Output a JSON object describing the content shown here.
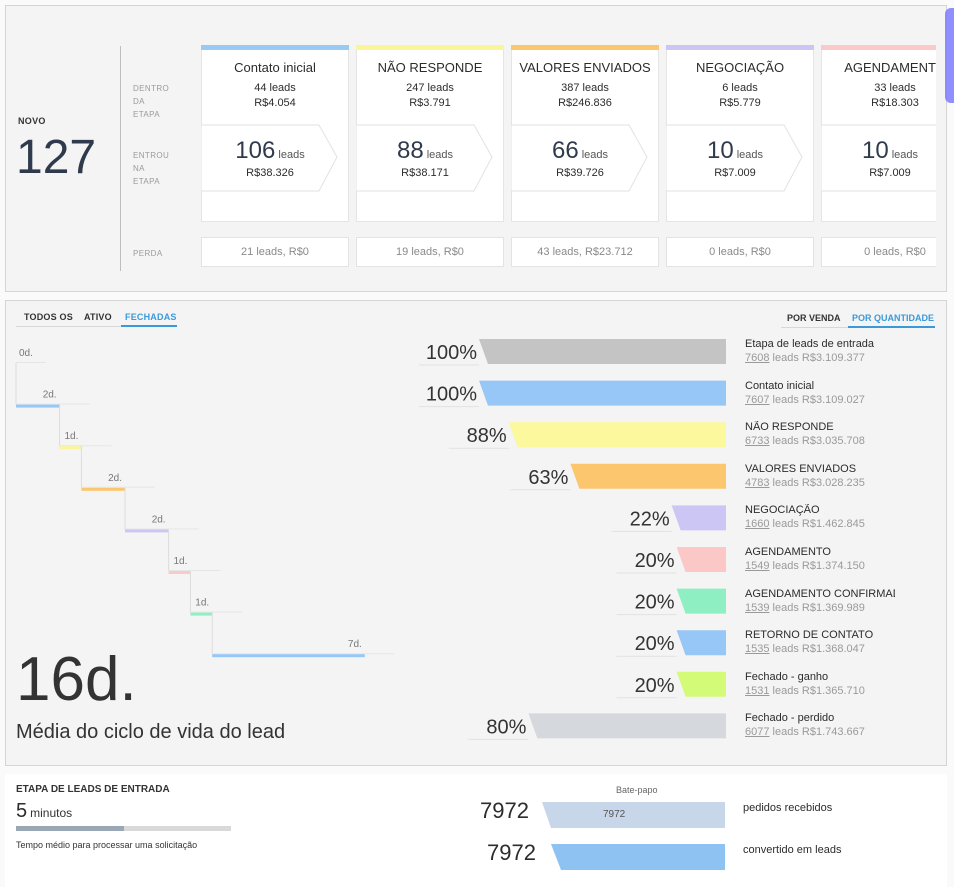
{
  "pipeline": {
    "novo_label": "NOVO",
    "novo_count": "127",
    "row_labels": {
      "dentro": "DENTRO\nDA\nETAPA",
      "entrou": "ENTROU\nNA\nETAPA",
      "perda": "PERDA"
    },
    "leads_word": "leads",
    "stages": [
      {
        "name": "Contato inicial",
        "in_leads": "44 leads",
        "in_value": "R$4.054",
        "entered_count": "106",
        "entered_value": "R$38.326",
        "loss": "21 leads, R$0",
        "color": "#99c9f5"
      },
      {
        "name": "NÃO RESPONDE",
        "in_leads": "247 leads",
        "in_value": "R$3.791",
        "entered_count": "88",
        "entered_value": "R$38.171",
        "loss": "19 leads, R$0",
        "color": "#fbf59a"
      },
      {
        "name": "VALORES ENVIADOS",
        "in_leads": "387 leads",
        "in_value": "R$246.836",
        "entered_count": "66",
        "entered_value": "R$39.726",
        "loss": "43 leads, R$23.712",
        "color": "#fbc66e"
      },
      {
        "name": "NEGOCIAÇÃO",
        "in_leads": "6 leads",
        "in_value": "R$5.779",
        "entered_count": "10",
        "entered_value": "R$7.009",
        "loss": "0 leads, R$0",
        "color": "#cbc6f3"
      },
      {
        "name": "AGENDAMENTO",
        "in_leads": "33 leads",
        "in_value": "R$18.303",
        "entered_count": "10",
        "entered_value": "R$7.009",
        "loss": "0 leads, R$0",
        "color": "#fbc9c9"
      }
    ]
  },
  "funnel": {
    "tabs": [
      "TODOS OS",
      "ATIVO",
      "FECHADAS"
    ],
    "active_tab": "FECHADAS",
    "view_tabs": [
      "POR VENDA",
      "POR QUANTIDADE"
    ],
    "active_view": "POR QUANTIDADE",
    "cycle_days": "16d.",
    "cycle_label": "Média do ciclo de vida do lead"
  },
  "chart_data": {
    "type": "bar",
    "categories": [
      "Etapa de leads de entrada",
      "Contato inicial",
      "NÃO RESPONDE",
      "VALORES ENVIADOS",
      "NEGOCIAÇÃO",
      "AGENDAMENTO",
      "AGENDAMENTO CONFIRMAD",
      "RETORNO DE CONTATO",
      "Fechado - ganho",
      "Fechado - perdido"
    ],
    "values": [
      100,
      100,
      88,
      63,
      22,
      20,
      20,
      20,
      20,
      80
    ],
    "percent_labels": [
      "100%",
      "100%",
      "88%",
      "63%",
      "22%",
      "20%",
      "20%",
      "20%",
      "20%",
      "80%"
    ],
    "lead_counts": [
      "7608",
      "7607",
      "6733",
      "4783",
      "1660",
      "1549",
      "1539",
      "1535",
      "1531",
      "6077"
    ],
    "lead_values": [
      " leads R$3.109.377",
      " leads R$3.109.027",
      " leads R$3.035.708",
      " leads R$3.028.235",
      " leads R$1.462.845",
      " leads R$1.374.150",
      " leads R$1.369.989",
      " leads R$1.368.047",
      " leads R$1.365.710",
      " leads R$1.743.667"
    ],
    "colors": [
      "#c4c4c4",
      "#96c7f6",
      "#fbf89d",
      "#fbc66e",
      "#cbc6f3",
      "#fbc7c7",
      "#8ef0c2",
      "#96c7f6",
      "#d3fb78",
      "#d5d8dc"
    ],
    "durations": [
      "0d.",
      "2d.",
      "1d.",
      "2d.",
      "2d.",
      "1d.",
      "1d.",
      "7d."
    ],
    "duration_days": [
      0,
      2,
      1,
      2,
      2,
      1,
      1,
      7
    ],
    "duration_colors": [
      "#c4c4c4",
      "#96c7f6",
      "#fbf59a",
      "#fbc66e",
      "#cbc6f3",
      "#fbc9c9",
      "#8ef0c2",
      "#96c7f6"
    ],
    "xlim": [
      0,
      100
    ]
  },
  "incoming": {
    "title": "ETAPA DE LEADS DE ENTRADA",
    "time_value": "5",
    "time_unit": "minutos",
    "progress": 0.5,
    "description": "Tempo médio para processar uma solicitação",
    "channel": "Bate-papo",
    "received_count": "7972",
    "received_inner": "7972",
    "received_label": "pedidos recebidos",
    "converted_count": "7972",
    "converted_label": "convertido em leads"
  }
}
